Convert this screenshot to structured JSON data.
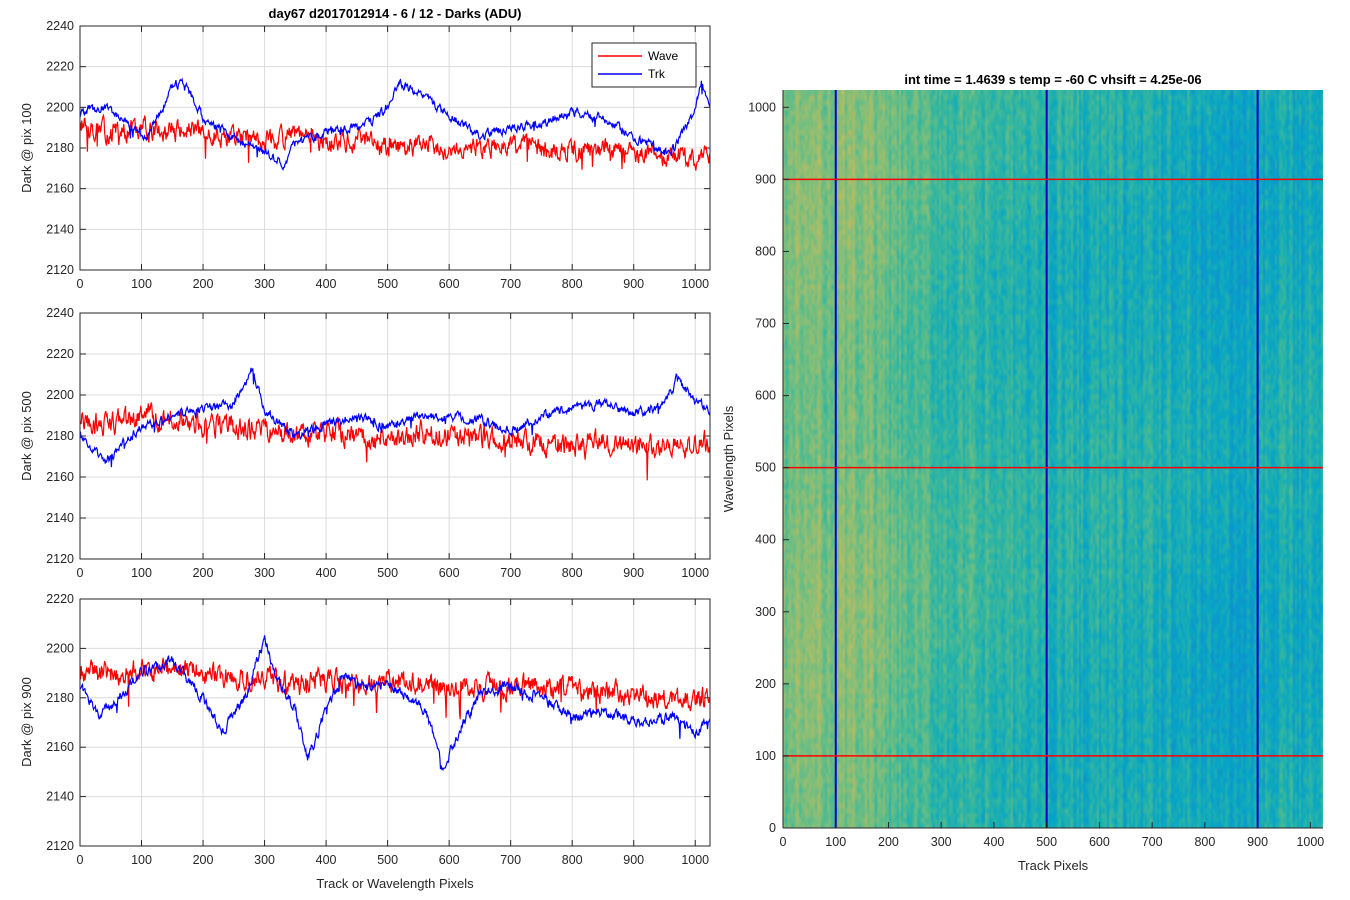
{
  "chart_data": [
    {
      "type": "line",
      "title": "day67 d2017012914 - 6 / 12 - Darks (ADU)",
      "xlabel": "",
      "ylabel": "Dark @ pix 100",
      "xlim": [
        0,
        1024
      ],
      "ylim": [
        2120,
        2240
      ],
      "xticks": [
        0,
        100,
        200,
        300,
        400,
        500,
        600,
        700,
        800,
        900,
        1000
      ],
      "yticks": [
        2120,
        2140,
        2160,
        2180,
        2200,
        2220,
        2240
      ],
      "grid": true,
      "legend": {
        "placement": "top-right",
        "entries": [
          "Wave",
          "Trk"
        ]
      },
      "series": [
        {
          "name": "Wave",
          "color": "#ff0000",
          "x": [
            0,
            50,
            100,
            150,
            200,
            250,
            300,
            350,
            400,
            450,
            500,
            550,
            600,
            650,
            700,
            750,
            800,
            850,
            900,
            950,
            1000,
            1024
          ],
          "values": [
            2192,
            2187,
            2190,
            2189,
            2187,
            2186,
            2184,
            2186,
            2183,
            2184,
            2180,
            2182,
            2181,
            2180,
            2182,
            2179,
            2178,
            2180,
            2177,
            2176,
            2175,
            2178
          ],
          "noise": 9
        },
        {
          "name": "Trk",
          "color": "#0000ff",
          "x": [
            0,
            40,
            90,
            110,
            150,
            170,
            200,
            250,
            300,
            330,
            350,
            400,
            460,
            500,
            520,
            560,
            600,
            650,
            700,
            750,
            800,
            850,
            900,
            960,
            1000,
            1010,
            1024
          ],
          "values": [
            2198,
            2200,
            2190,
            2185,
            2210,
            2212,
            2195,
            2185,
            2178,
            2172,
            2182,
            2188,
            2190,
            2200,
            2212,
            2205,
            2196,
            2186,
            2190,
            2192,
            2198,
            2195,
            2185,
            2177,
            2198,
            2212,
            2200
          ],
          "noise": 4
        }
      ]
    },
    {
      "type": "line",
      "title": "",
      "xlabel": "",
      "ylabel": "Dark @ pix 500",
      "xlim": [
        0,
        1024
      ],
      "ylim": [
        2120,
        2240
      ],
      "xticks": [
        0,
        100,
        200,
        300,
        400,
        500,
        600,
        700,
        800,
        900,
        1000
      ],
      "yticks": [
        2120,
        2140,
        2160,
        2180,
        2200,
        2220,
        2240
      ],
      "grid": true,
      "series": [
        {
          "name": "Wave",
          "color": "#ff0000",
          "x": [
            0,
            50,
            100,
            150,
            200,
            250,
            300,
            350,
            400,
            450,
            500,
            550,
            600,
            650,
            700,
            750,
            800,
            850,
            900,
            950,
            1000,
            1024
          ],
          "values": [
            2186,
            2186,
            2190,
            2188,
            2186,
            2184,
            2183,
            2180,
            2182,
            2180,
            2178,
            2181,
            2180,
            2178,
            2179,
            2176,
            2176,
            2177,
            2176,
            2175,
            2176,
            2177
          ],
          "noise": 10
        },
        {
          "name": "Trk",
          "color": "#0000ff",
          "x": [
            0,
            40,
            100,
            150,
            200,
            250,
            280,
            300,
            350,
            400,
            450,
            500,
            550,
            600,
            650,
            700,
            750,
            800,
            850,
            900,
            950,
            970,
            1000,
            1024
          ],
          "values": [
            2180,
            2167,
            2185,
            2190,
            2193,
            2196,
            2213,
            2192,
            2180,
            2185,
            2190,
            2184,
            2190,
            2189,
            2188,
            2182,
            2190,
            2193,
            2196,
            2191,
            2195,
            2208,
            2198,
            2193
          ],
          "noise": 4
        }
      ]
    },
    {
      "type": "line",
      "title": "",
      "xlabel": "Track or Wavelength Pixels",
      "ylabel": "Dark @ pix 900",
      "xlim": [
        0,
        1024
      ],
      "ylim": [
        2120,
        2220
      ],
      "xticks": [
        0,
        100,
        200,
        300,
        400,
        500,
        600,
        700,
        800,
        900,
        1000
      ],
      "yticks": [
        2120,
        2140,
        2160,
        2180,
        2200,
        2220
      ],
      "grid": true,
      "series": [
        {
          "name": "Wave",
          "color": "#ff0000",
          "x": [
            0,
            50,
            100,
            150,
            200,
            250,
            300,
            350,
            400,
            450,
            500,
            550,
            600,
            650,
            700,
            750,
            800,
            850,
            900,
            950,
            1000,
            1024
          ],
          "values": [
            2192,
            2190,
            2191,
            2192,
            2190,
            2188,
            2188,
            2186,
            2187,
            2186,
            2188,
            2186,
            2185,
            2184,
            2185,
            2184,
            2183,
            2182,
            2181,
            2180,
            2180,
            2180
          ],
          "noise": 8
        },
        {
          "name": "Trk",
          "color": "#0000ff",
          "x": [
            0,
            30,
            80,
            100,
            150,
            200,
            230,
            270,
            300,
            320,
            350,
            370,
            400,
            430,
            460,
            500,
            560,
            590,
            620,
            650,
            700,
            750,
            800,
            850,
            900,
            960,
            1000,
            1024
          ],
          "values": [
            2185,
            2172,
            2185,
            2190,
            2195,
            2180,
            2166,
            2180,
            2205,
            2188,
            2175,
            2155,
            2175,
            2190,
            2184,
            2186,
            2175,
            2152,
            2168,
            2182,
            2185,
            2180,
            2172,
            2175,
            2170,
            2172,
            2166,
            2172
          ],
          "noise": 4
        }
      ]
    },
    {
      "type": "heatmap",
      "title": "int time = 1.4639 s    temp = -60 C    vhsift = 4.25e-06",
      "xlabel": "Track Pixels",
      "ylabel": "Wavelength Pixels",
      "xlim": [
        0,
        1024
      ],
      "ylim": [
        0,
        1024
      ],
      "xticks": [
        0,
        100,
        200,
        300,
        400,
        500,
        600,
        700,
        800,
        900,
        1000
      ],
      "yticks": [
        0,
        100,
        200,
        300,
        400,
        500,
        600,
        700,
        800,
        900,
        1000
      ],
      "colormap": "parula",
      "column_profile": {
        "x": [
          0,
          50,
          100,
          150,
          200,
          300,
          400,
          500,
          600,
          700,
          800,
          850,
          900,
          950,
          1024
        ],
        "level": [
          0.6,
          0.62,
          0.61,
          0.63,
          0.57,
          0.52,
          0.49,
          0.48,
          0.47,
          0.46,
          0.44,
          0.41,
          0.43,
          0.45,
          0.46
        ]
      },
      "vertical_markers": {
        "x": [
          100,
          500,
          900
        ],
        "color": "#0000cc"
      },
      "horizontal_markers": {
        "y": [
          100,
          500,
          900
        ],
        "color": "#ff0000"
      }
    }
  ]
}
